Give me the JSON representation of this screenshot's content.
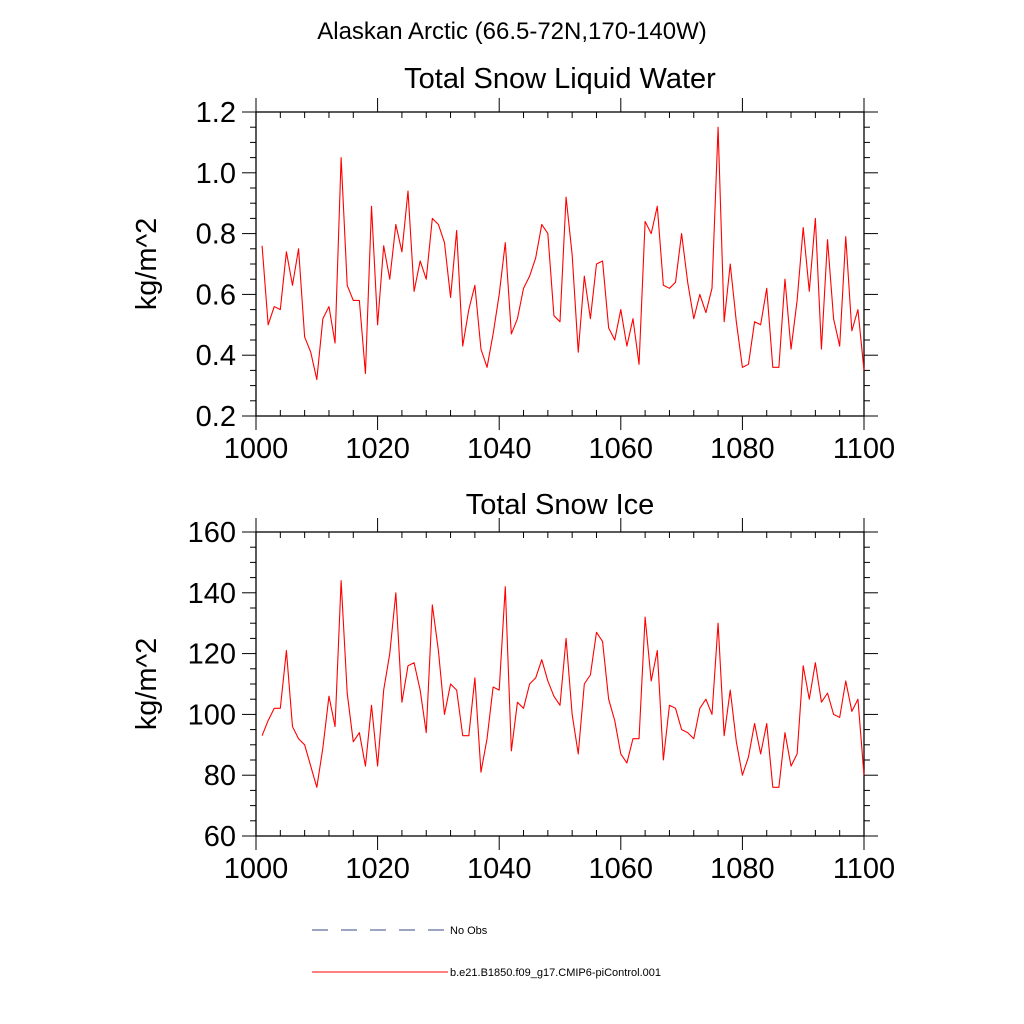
{
  "figure": {
    "suptitle": "Alaskan Arctic (66.5-72N,170-140W)",
    "legend": [
      {
        "label": "No Obs",
        "color": "#3a4a8a",
        "dash": true
      },
      {
        "label": "b.e21.B1850.f09_g17.CMIP6-piControl.001",
        "color": "#ff0000",
        "dash": false
      }
    ]
  },
  "chart_data": [
    {
      "type": "line",
      "title": "Total Snow Liquid Water",
      "xlabel": "",
      "ylabel": "kg/m^2",
      "xlim": [
        1000,
        1100
      ],
      "ylim": [
        0.2,
        1.2
      ],
      "xticks": [
        "1000",
        "1020",
        "1040",
        "1060",
        "1080",
        "1100"
      ],
      "yticks": [
        "0.2",
        "0.4",
        "0.6",
        "0.8",
        "1.0",
        "1.2"
      ],
      "series": [
        {
          "name": "b.e21.B1850.f09_g17.CMIP6-piControl.001",
          "color": "#ff0000",
          "x_start": 1001,
          "x_step": 1,
          "values": [
            0.76,
            0.5,
            0.56,
            0.55,
            0.74,
            0.63,
            0.75,
            0.46,
            0.41,
            0.32,
            0.52,
            0.56,
            0.44,
            1.05,
            0.63,
            0.58,
            0.58,
            0.34,
            0.89,
            0.5,
            0.76,
            0.65,
            0.83,
            0.74,
            0.94,
            0.61,
            0.71,
            0.65,
            0.85,
            0.83,
            0.77,
            0.59,
            0.81,
            0.43,
            0.55,
            0.63,
            0.42,
            0.36,
            0.47,
            0.6,
            0.77,
            0.47,
            0.52,
            0.62,
            0.66,
            0.72,
            0.83,
            0.8,
            0.53,
            0.51,
            0.92,
            0.73,
            0.41,
            0.66,
            0.52,
            0.7,
            0.71,
            0.49,
            0.45,
            0.55,
            0.43,
            0.52,
            0.37,
            0.84,
            0.8,
            0.89,
            0.63,
            0.62,
            0.64,
            0.8,
            0.64,
            0.52,
            0.6,
            0.54,
            0.62,
            1.15,
            0.51,
            0.7,
            0.51,
            0.36,
            0.37,
            0.51,
            0.5,
            0.62,
            0.36,
            0.36,
            0.65,
            0.42,
            0.58,
            0.82,
            0.61,
            0.85,
            0.42,
            0.78,
            0.52,
            0.43,
            0.79,
            0.48,
            0.55,
            0.35
          ]
        }
      ]
    },
    {
      "type": "line",
      "title": "Total Snow Ice",
      "xlabel": "",
      "ylabel": "kg/m^2",
      "xlim": [
        1000,
        1100
      ],
      "ylim": [
        60,
        160
      ],
      "xticks": [
        "1000",
        "1020",
        "1040",
        "1060",
        "1080",
        "1100"
      ],
      "yticks": [
        "60",
        "80",
        "100",
        "120",
        "140",
        "160"
      ],
      "series": [
        {
          "name": "b.e21.B1850.f09_g17.CMIP6-piControl.001",
          "color": "#ff0000",
          "x_start": 1001,
          "x_step": 1,
          "values": [
            93,
            98,
            102,
            102,
            121,
            96,
            92,
            90,
            83,
            76,
            89,
            106,
            96,
            144,
            107,
            91,
            94,
            83,
            103,
            83,
            108,
            120,
            140,
            104,
            116,
            117,
            108,
            94,
            136,
            121,
            100,
            110,
            108,
            93,
            93,
            112,
            81,
            92,
            109,
            108,
            142,
            88,
            104,
            102,
            110,
            112,
            118,
            111,
            106,
            103,
            125,
            100,
            87,
            110,
            113,
            127,
            124,
            105,
            98,
            87,
            84,
            92,
            92,
            132,
            111,
            121,
            85,
            103,
            102,
            95,
            94,
            92,
            102,
            105,
            100,
            130,
            93,
            108,
            91,
            80,
            86,
            97,
            87,
            97,
            76,
            76,
            94,
            83,
            87,
            116,
            105,
            117,
            104,
            107,
            100,
            99,
            111,
            101,
            105,
            80
          ]
        }
      ]
    }
  ]
}
